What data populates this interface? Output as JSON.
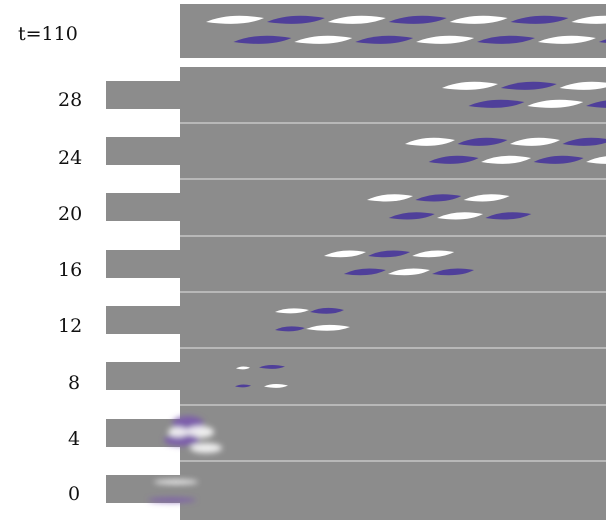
{
  "figure": {
    "top_panel": {
      "label": "t=110"
    },
    "rows": [
      {
        "label": "28"
      },
      {
        "label": "24"
      },
      {
        "label": "20"
      },
      {
        "label": "16"
      },
      {
        "label": "12"
      },
      {
        "label": "8"
      },
      {
        "label": "4"
      },
      {
        "label": "0"
      }
    ],
    "colors": {
      "background": "#8c8c8c",
      "positive_blob": "#4f3f9a",
      "negative_blob": "#ffffff",
      "separator": "#d2d2d2",
      "diffuse_blob": "#7a55b0"
    }
  }
}
